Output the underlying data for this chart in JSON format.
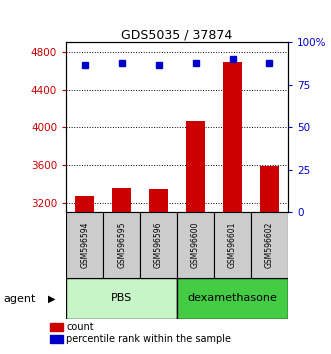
{
  "title": "GDS5035 / 37874",
  "samples": [
    "GSM596594",
    "GSM596595",
    "GSM596596",
    "GSM596600",
    "GSM596601",
    "GSM596602"
  ],
  "counts": [
    3270,
    3360,
    3350,
    4070,
    4690,
    3590
  ],
  "percentiles": [
    87,
    88,
    87,
    88,
    90,
    88
  ],
  "ylim_left": [
    3100,
    4900
  ],
  "ylim_right": [
    0,
    100
  ],
  "yticks_left": [
    3200,
    3600,
    4000,
    4400,
    4800
  ],
  "yticks_right": [
    0,
    25,
    50,
    75,
    100
  ],
  "ytick_labels_right": [
    "0",
    "25",
    "50",
    "75",
    "100%"
  ],
  "bar_color": "#cc0000",
  "dot_color": "#0000cc",
  "group1_label": "PBS",
  "group2_label": "dexamethasone",
  "group1_color": "#c8f5c8",
  "group2_color": "#44cc44",
  "agent_label": "agent",
  "legend_count": "count",
  "legend_percentile": "percentile rank within the sample",
  "sample_box_color": "#cccccc",
  "figsize": [
    3.31,
    3.54
  ],
  "dpi": 100
}
